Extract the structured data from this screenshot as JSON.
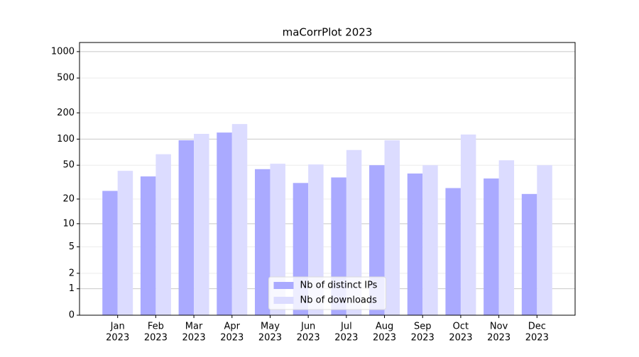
{
  "chart_data": {
    "type": "bar",
    "title": "maCorrPlot 2023",
    "categories": [
      [
        "Jan",
        "2023"
      ],
      [
        "Feb",
        "2023"
      ],
      [
        "Mar",
        "2023"
      ],
      [
        "Apr",
        "2023"
      ],
      [
        "May",
        "2023"
      ],
      [
        "Jun",
        "2023"
      ],
      [
        "Jul",
        "2023"
      ],
      [
        "Aug",
        "2023"
      ],
      [
        "Sep",
        "2023"
      ],
      [
        "Oct",
        "2023"
      ],
      [
        "Nov",
        "2023"
      ],
      [
        "Dec",
        "2023"
      ]
    ],
    "series": [
      {
        "name": "Nb of distinct IPs",
        "color": "#aaaaff",
        "values": [
          25,
          37,
          97,
          119,
          45,
          31,
          36,
          50,
          40,
          27,
          35,
          23
        ]
      },
      {
        "name": "Nb of downloads",
        "color": "#dcdcff",
        "values": [
          43,
          67,
          115,
          149,
          52,
          51,
          75,
          97,
          50,
          113,
          57,
          50
        ]
      }
    ],
    "yscale": "log1p",
    "ylim": [
      0,
      1270
    ],
    "yticks": [
      0,
      1,
      2,
      5,
      10,
      20,
      50,
      100,
      200,
      500,
      1000
    ],
    "grid": true,
    "legend": "lower center"
  }
}
